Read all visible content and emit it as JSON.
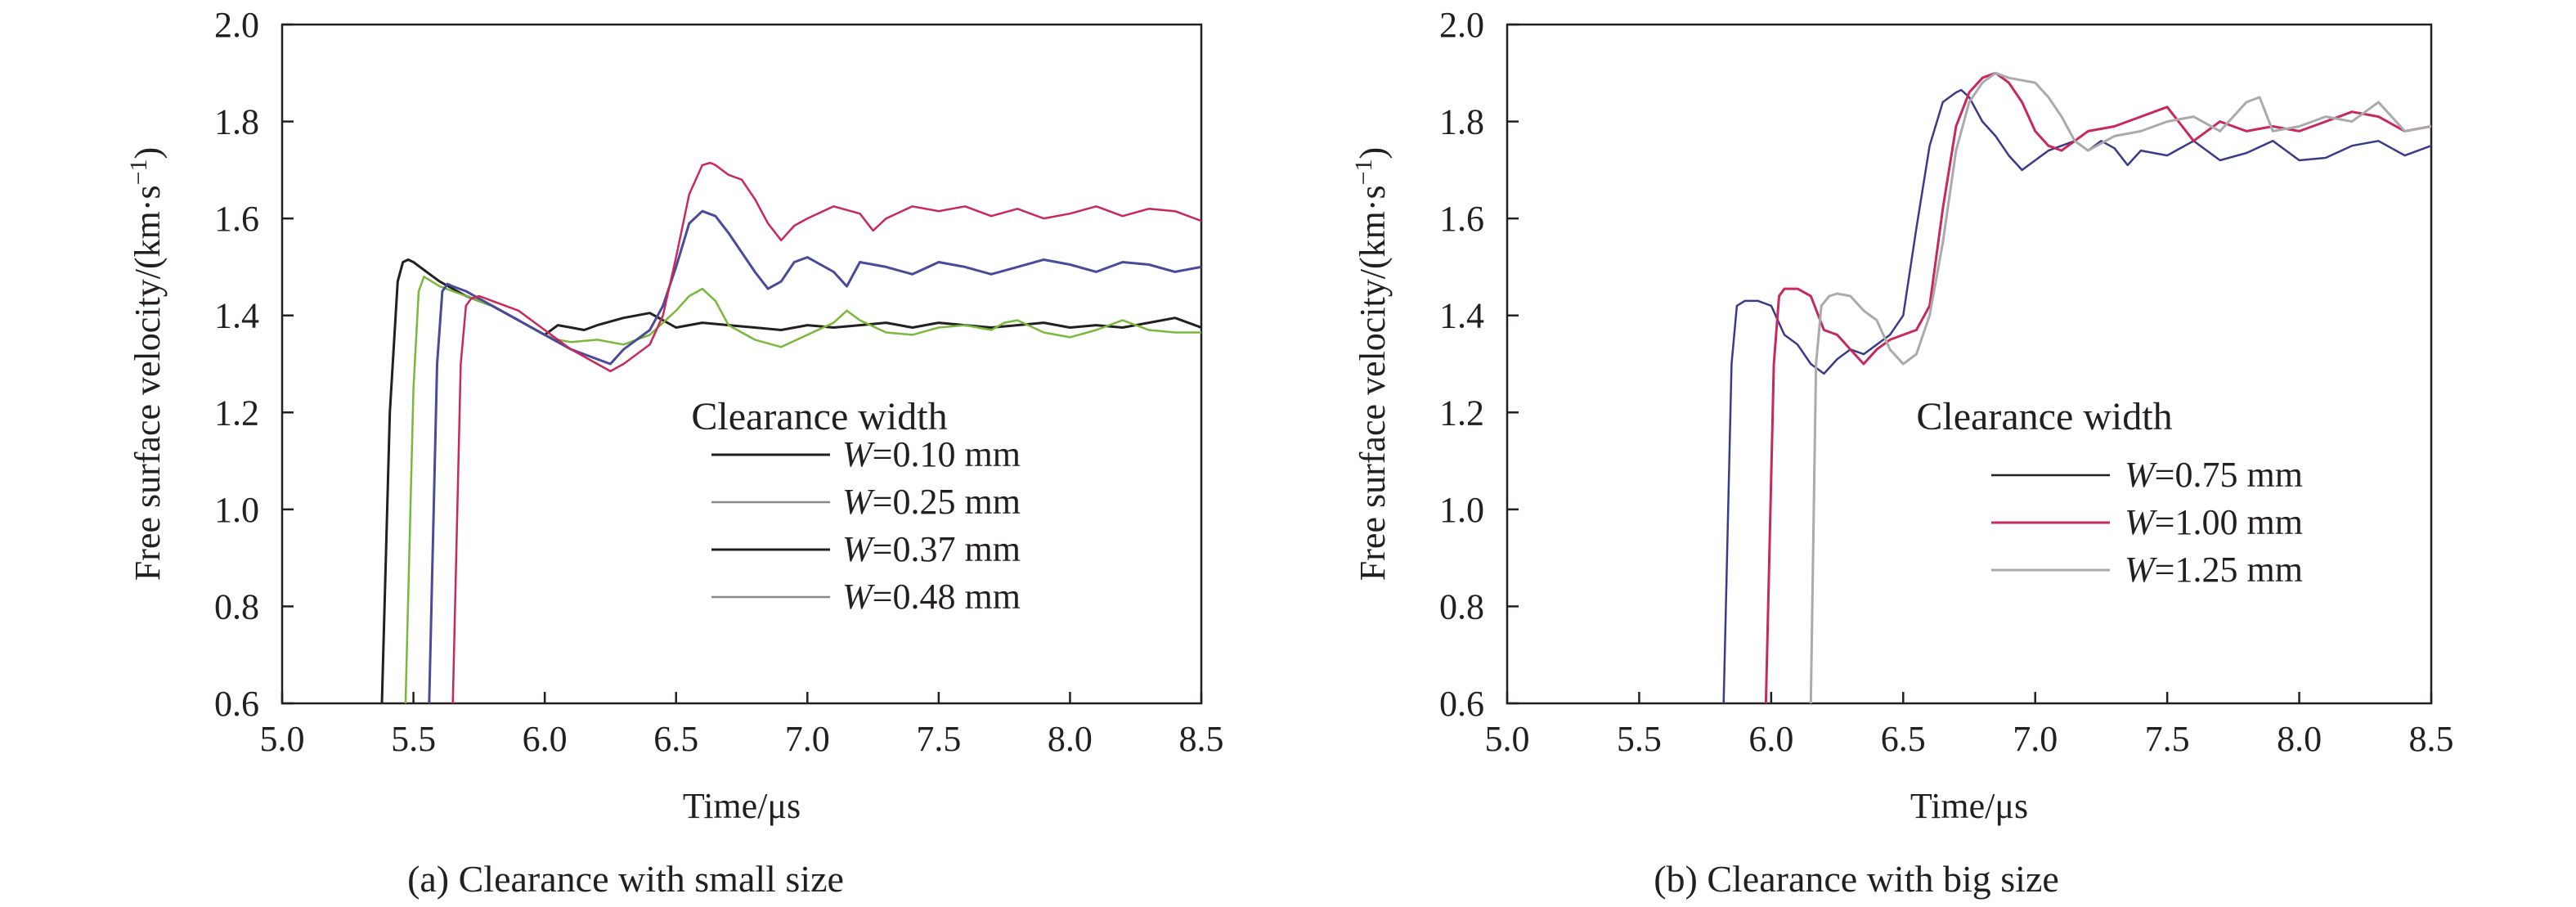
{
  "chart_data": [
    {
      "type": "line",
      "title": "(a) Clearance with small size",
      "xlabel": "Time/μs",
      "ylabel": "Free surface velocity/(km·s",
      "ylabel_sup": "−1",
      "ylabel_close": ")",
      "xlim": [
        5.0,
        8.5
      ],
      "ylim": [
        0.6,
        2.0
      ],
      "xticks": [
        "5.0",
        "5.5",
        "6.0",
        "6.5",
        "7.0",
        "7.5",
        "8.0",
        "8.5"
      ],
      "yticks": [
        "0.6",
        "0.8",
        "1.0",
        "1.2",
        "1.4",
        "1.6",
        "1.8",
        "2.0"
      ],
      "legend_title": "Clearance width",
      "legend_position": "lower-right",
      "series": [
        {
          "name": "W=0.10 mm",
          "var": "W",
          "rest": "=0.10 mm",
          "color": "#231f20",
          "legend_color": "#231f20",
          "width": 3,
          "x": [
            5.38,
            5.41,
            5.44,
            5.46,
            5.48,
            5.5,
            5.55,
            5.6,
            5.7,
            5.8,
            5.9,
            6.0,
            6.05,
            6.1,
            6.15,
            6.2,
            6.3,
            6.4,
            6.45,
            6.5,
            6.6,
            6.7,
            6.8,
            6.9,
            7.0,
            7.1,
            7.2,
            7.3,
            7.4,
            7.5,
            7.6,
            7.7,
            7.8,
            7.9,
            8.0,
            8.1,
            8.2,
            8.3,
            8.4,
            8.5
          ],
          "y": [
            0.6,
            1.2,
            1.47,
            1.51,
            1.515,
            1.51,
            1.49,
            1.47,
            1.44,
            1.42,
            1.39,
            1.36,
            1.38,
            1.375,
            1.37,
            1.38,
            1.395,
            1.405,
            1.39,
            1.375,
            1.385,
            1.38,
            1.375,
            1.37,
            1.38,
            1.375,
            1.38,
            1.385,
            1.375,
            1.385,
            1.38,
            1.375,
            1.38,
            1.385,
            1.375,
            1.38,
            1.375,
            1.385,
            1.395,
            1.375
          ]
        },
        {
          "name": "W=0.25 mm",
          "var": "W",
          "rest": "=0.25 mm",
          "color": "#7ab83c",
          "legend_color": "#888888",
          "width": 2.5,
          "x": [
            5.47,
            5.5,
            5.52,
            5.54,
            5.57,
            5.6,
            5.7,
            5.8,
            5.9,
            6.0,
            6.05,
            6.1,
            6.2,
            6.3,
            6.4,
            6.5,
            6.55,
            6.6,
            6.65,
            6.7,
            6.8,
            6.9,
            7.0,
            7.1,
            7.15,
            7.2,
            7.3,
            7.4,
            7.5,
            7.6,
            7.7,
            7.75,
            7.8,
            7.9,
            8.0,
            8.1,
            8.2,
            8.3,
            8.4,
            8.5
          ],
          "y": [
            0.6,
            1.25,
            1.45,
            1.48,
            1.47,
            1.46,
            1.44,
            1.42,
            1.39,
            1.36,
            1.35,
            1.345,
            1.35,
            1.34,
            1.36,
            1.41,
            1.44,
            1.455,
            1.43,
            1.38,
            1.35,
            1.335,
            1.36,
            1.385,
            1.41,
            1.39,
            1.365,
            1.36,
            1.375,
            1.38,
            1.37,
            1.385,
            1.39,
            1.365,
            1.355,
            1.37,
            1.39,
            1.37,
            1.365,
            1.365
          ]
        },
        {
          "name": "W=0.37 mm",
          "var": "W",
          "rest": "=0.37 mm",
          "color": "#4a4a9a",
          "legend_color": "#231f20",
          "width": 3,
          "x": [
            5.56,
            5.59,
            5.61,
            5.63,
            5.65,
            5.7,
            5.8,
            5.9,
            6.0,
            6.1,
            6.2,
            6.25,
            6.3,
            6.4,
            6.45,
            6.5,
            6.55,
            6.6,
            6.65,
            6.7,
            6.75,
            6.8,
            6.85,
            6.9,
            6.95,
            7.0,
            7.1,
            7.15,
            7.2,
            7.3,
            7.4,
            7.5,
            7.6,
            7.7,
            7.8,
            7.9,
            8.0,
            8.1,
            8.2,
            8.3,
            8.4,
            8.5
          ],
          "y": [
            0.6,
            1.3,
            1.45,
            1.465,
            1.46,
            1.45,
            1.42,
            1.39,
            1.36,
            1.33,
            1.31,
            1.3,
            1.33,
            1.37,
            1.42,
            1.5,
            1.59,
            1.615,
            1.605,
            1.57,
            1.53,
            1.49,
            1.455,
            1.47,
            1.51,
            1.52,
            1.49,
            1.46,
            1.51,
            1.5,
            1.485,
            1.51,
            1.5,
            1.485,
            1.5,
            1.515,
            1.505,
            1.49,
            1.51,
            1.505,
            1.49,
            1.5
          ]
        },
        {
          "name": "W=0.48 mm",
          "var": "W",
          "rest": "=0.48 mm",
          "color": "#c8285a",
          "legend_color": "#888888",
          "width": 2.5,
          "x": [
            5.65,
            5.68,
            5.7,
            5.72,
            5.75,
            5.8,
            5.9,
            6.0,
            6.1,
            6.2,
            6.25,
            6.3,
            6.4,
            6.45,
            6.5,
            6.55,
            6.6,
            6.63,
            6.65,
            6.7,
            6.75,
            6.8,
            6.85,
            6.9,
            6.95,
            7.0,
            7.1,
            7.2,
            7.25,
            7.3,
            7.4,
            7.5,
            7.6,
            7.7,
            7.8,
            7.9,
            8.0,
            8.1,
            8.2,
            8.3,
            8.4,
            8.5
          ],
          "y": [
            0.6,
            1.3,
            1.42,
            1.435,
            1.44,
            1.43,
            1.41,
            1.37,
            1.33,
            1.3,
            1.285,
            1.3,
            1.34,
            1.4,
            1.52,
            1.65,
            1.71,
            1.715,
            1.71,
            1.69,
            1.68,
            1.64,
            1.59,
            1.555,
            1.585,
            1.6,
            1.625,
            1.61,
            1.575,
            1.6,
            1.625,
            1.615,
            1.625,
            1.605,
            1.62,
            1.6,
            1.61,
            1.625,
            1.605,
            1.62,
            1.615,
            1.595
          ]
        }
      ]
    },
    {
      "type": "line",
      "title": "(b) Clearance with big size",
      "xlabel": "Time/μs",
      "ylabel": "Free surface velocity/(km·s",
      "ylabel_sup": "−1",
      "ylabel_close": ")",
      "xlim": [
        5.0,
        8.5
      ],
      "ylim": [
        0.6,
        2.0
      ],
      "xticks": [
        "5.0",
        "5.5",
        "6.0",
        "6.5",
        "7.0",
        "7.5",
        "8.0",
        "8.5"
      ],
      "yticks": [
        "0.6",
        "0.8",
        "1.0",
        "1.2",
        "1.4",
        "1.6",
        "1.8",
        "2.0"
      ],
      "legend_title": "Clearance width",
      "legend_position": "right",
      "series": [
        {
          "name": "W=0.75 mm",
          "var": "W",
          "rest": "=0.75 mm",
          "color": "#3a3a8a",
          "legend_color": "#231f20",
          "width": 2.5,
          "x": [
            5.82,
            5.85,
            5.87,
            5.9,
            5.95,
            6.0,
            6.05,
            6.1,
            6.15,
            6.2,
            6.25,
            6.3,
            6.35,
            6.4,
            6.45,
            6.5,
            6.55,
            6.6,
            6.65,
            6.7,
            6.72,
            6.75,
            6.8,
            6.85,
            6.9,
            6.95,
            7.0,
            7.05,
            7.1,
            7.15,
            7.2,
            7.25,
            7.3,
            7.35,
            7.4,
            7.5,
            7.6,
            7.7,
            7.8,
            7.9,
            8.0,
            8.1,
            8.2,
            8.3,
            8.4,
            8.5
          ],
          "y": [
            0.6,
            1.3,
            1.42,
            1.43,
            1.43,
            1.42,
            1.36,
            1.34,
            1.3,
            1.28,
            1.31,
            1.33,
            1.32,
            1.34,
            1.36,
            1.4,
            1.58,
            1.75,
            1.84,
            1.86,
            1.865,
            1.85,
            1.8,
            1.77,
            1.73,
            1.7,
            1.72,
            1.74,
            1.75,
            1.76,
            1.74,
            1.76,
            1.745,
            1.71,
            1.74,
            1.73,
            1.76,
            1.72,
            1.735,
            1.76,
            1.72,
            1.725,
            1.75,
            1.76,
            1.73,
            1.75
          ]
        },
        {
          "name": "W=1.00 mm",
          "var": "W",
          "rest": "=1.00 mm",
          "color": "#c8285a",
          "legend_color": "#c8285a",
          "width": 3,
          "x": [
            5.98,
            6.01,
            6.03,
            6.05,
            6.1,
            6.15,
            6.2,
            6.25,
            6.3,
            6.35,
            6.4,
            6.45,
            6.5,
            6.55,
            6.6,
            6.65,
            6.7,
            6.75,
            6.8,
            6.85,
            6.9,
            6.95,
            7.0,
            7.05,
            7.1,
            7.15,
            7.2,
            7.3,
            7.4,
            7.5,
            7.6,
            7.7,
            7.8,
            7.9,
            8.0,
            8.1,
            8.2,
            8.3,
            8.4,
            8.5
          ],
          "y": [
            0.6,
            1.3,
            1.44,
            1.455,
            1.455,
            1.44,
            1.37,
            1.36,
            1.33,
            1.3,
            1.33,
            1.35,
            1.36,
            1.37,
            1.42,
            1.62,
            1.79,
            1.86,
            1.89,
            1.9,
            1.88,
            1.84,
            1.78,
            1.75,
            1.74,
            1.76,
            1.78,
            1.79,
            1.81,
            1.83,
            1.76,
            1.8,
            1.78,
            1.79,
            1.78,
            1.8,
            1.82,
            1.81,
            1.78,
            1.79
          ]
        },
        {
          "name": "W=1.25 mm",
          "var": "W",
          "rest": "=1.25 mm",
          "color": "#aaaaaa",
          "legend_color": "#aaaaaa",
          "width": 3,
          "x": [
            6.15,
            6.17,
            6.19,
            6.22,
            6.25,
            6.3,
            6.35,
            6.4,
            6.45,
            6.5,
            6.55,
            6.6,
            6.65,
            6.7,
            6.75,
            6.8,
            6.85,
            6.9,
            6.95,
            7.0,
            7.05,
            7.1,
            7.15,
            7.2,
            7.3,
            7.4,
            7.5,
            7.6,
            7.7,
            7.8,
            7.85,
            7.9,
            8.0,
            8.1,
            8.2,
            8.3,
            8.4,
            8.5
          ],
          "y": [
            0.6,
            1.3,
            1.42,
            1.44,
            1.445,
            1.44,
            1.41,
            1.39,
            1.33,
            1.3,
            1.32,
            1.4,
            1.55,
            1.74,
            1.84,
            1.88,
            1.9,
            1.89,
            1.885,
            1.88,
            1.85,
            1.81,
            1.76,
            1.74,
            1.77,
            1.78,
            1.8,
            1.81,
            1.78,
            1.84,
            1.85,
            1.78,
            1.79,
            1.81,
            1.8,
            1.84,
            1.78,
            1.79
          ]
        }
      ]
    }
  ]
}
